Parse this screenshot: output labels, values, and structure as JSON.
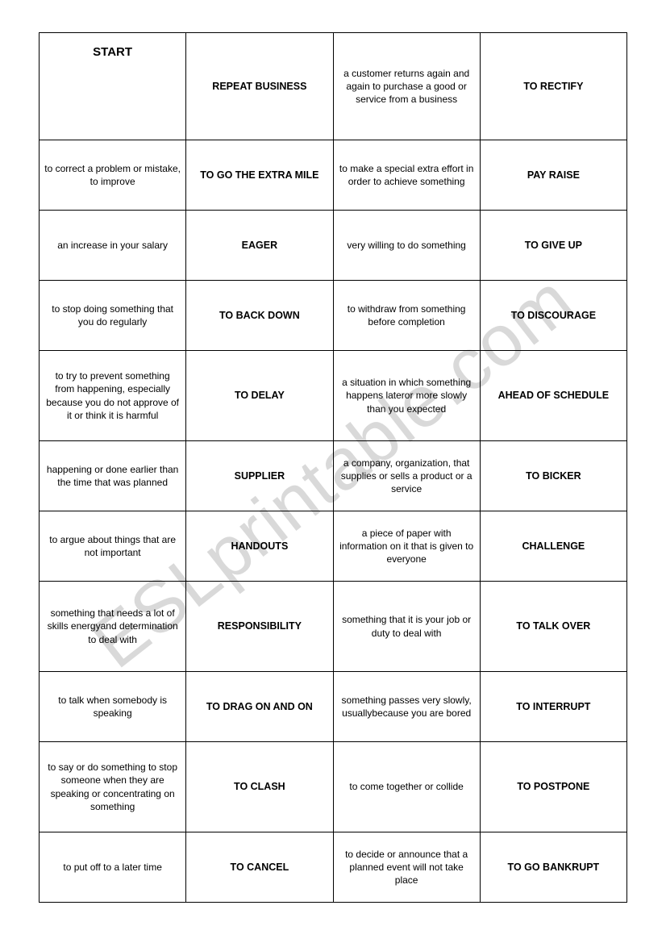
{
  "watermark": "ESLprintable.com",
  "table": {
    "rows": [
      {
        "cells": [
          {
            "text": "START",
            "class": "start"
          },
          {
            "text": "REPEAT BUSINESS",
            "class": "term"
          },
          {
            "text": "a customer returns again and again to purchase a good or service from a business",
            "class": "def"
          },
          {
            "text": "TO RECTIFY",
            "class": "term"
          }
        ],
        "rowClass": "row-tall"
      },
      {
        "cells": [
          {
            "text": "to correct a problem or mistake, to improve",
            "class": "def"
          },
          {
            "text": "TO GO THE EXTRA MILE",
            "class": "term"
          },
          {
            "text": "to make a special extra effort in order to achieve something",
            "class": "def"
          },
          {
            "text": "PAY RAISE",
            "class": "term"
          }
        ],
        "rowClass": "row-med"
      },
      {
        "cells": [
          {
            "text": "an increase in your salary",
            "class": "def"
          },
          {
            "text": "EAGER",
            "class": "term"
          },
          {
            "text": "very willing to do something",
            "class": "def"
          },
          {
            "text": "TO GIVE UP",
            "class": "term"
          }
        ],
        "rowClass": "row-med"
      },
      {
        "cells": [
          {
            "text": "to stop doing something that you do regularly",
            "class": "def"
          },
          {
            "text": "TO BACK DOWN",
            "class": "term"
          },
          {
            "text": "to withdraw from something before completion",
            "class": "def"
          },
          {
            "text": "TO DISCOURAGE",
            "class": "term"
          }
        ],
        "rowClass": "row-med"
      },
      {
        "cells": [
          {
            "text": "to try to prevent something from happening, especially because you do not approve of it or think it is harmful",
            "class": "def"
          },
          {
            "text": "TO DELAY",
            "class": "term"
          },
          {
            "text": "a situation in which something happens lateror more slowly than you expected",
            "class": "def"
          },
          {
            "text": "AHEAD OF SCHEDULE",
            "class": "term"
          }
        ],
        "rowClass": "row-big"
      },
      {
        "cells": [
          {
            "text": "happening or done earlier than  the time that was planned",
            "class": "def"
          },
          {
            "text": "SUPPLIER",
            "class": "term"
          },
          {
            "text": "a company, organization, that supplies or sells a product or a service",
            "class": "def"
          },
          {
            "text": "TO BICKER",
            "class": "term"
          }
        ],
        "rowClass": "row-med"
      },
      {
        "cells": [
          {
            "text": "to argue about things that are not important",
            "class": "def"
          },
          {
            "text": "HANDOUTS",
            "class": "term"
          },
          {
            "text": "a piece of paper with information on it that is given to everyone",
            "class": "def"
          },
          {
            "text": "CHALLENGE",
            "class": "term"
          }
        ],
        "rowClass": "row-med"
      },
      {
        "cells": [
          {
            "text": "something that needs a lot of skills energyand determination to deal with",
            "class": "def"
          },
          {
            "text": "RESPONSIBILITY",
            "class": "term"
          },
          {
            "text": "something that it is your job or duty to deal with",
            "class": "def"
          },
          {
            "text": "TO TALK OVER",
            "class": "term"
          }
        ],
        "rowClass": "row-big"
      },
      {
        "cells": [
          {
            "text": "to talk when somebody is speaking",
            "class": "def"
          },
          {
            "text": "TO DRAG ON AND ON",
            "class": "term"
          },
          {
            "text": "something passes very slowly, usuallybecause you are bored",
            "class": "def"
          },
          {
            "text": "TO INTERRUPT",
            "class": "term"
          }
        ],
        "rowClass": "row-med"
      },
      {
        "cells": [
          {
            "text": "to say or do something to stop someone when they are speaking or concentrating on something",
            "class": "def"
          },
          {
            "text": "TO CLASH",
            "class": "term"
          },
          {
            "text": "to come together or collide",
            "class": "def"
          },
          {
            "text": "TO POSTPONE",
            "class": "term"
          }
        ],
        "rowClass": "row-big"
      },
      {
        "cells": [
          {
            "text": "to put off to a later time",
            "class": "def"
          },
          {
            "text": "TO CANCEL",
            "class": "term"
          },
          {
            "text": "to decide or announce that a planned event will not take place",
            "class": "def"
          },
          {
            "text": "TO GO BANKRUPT",
            "class": "term"
          }
        ],
        "rowClass": "row-med"
      }
    ]
  }
}
